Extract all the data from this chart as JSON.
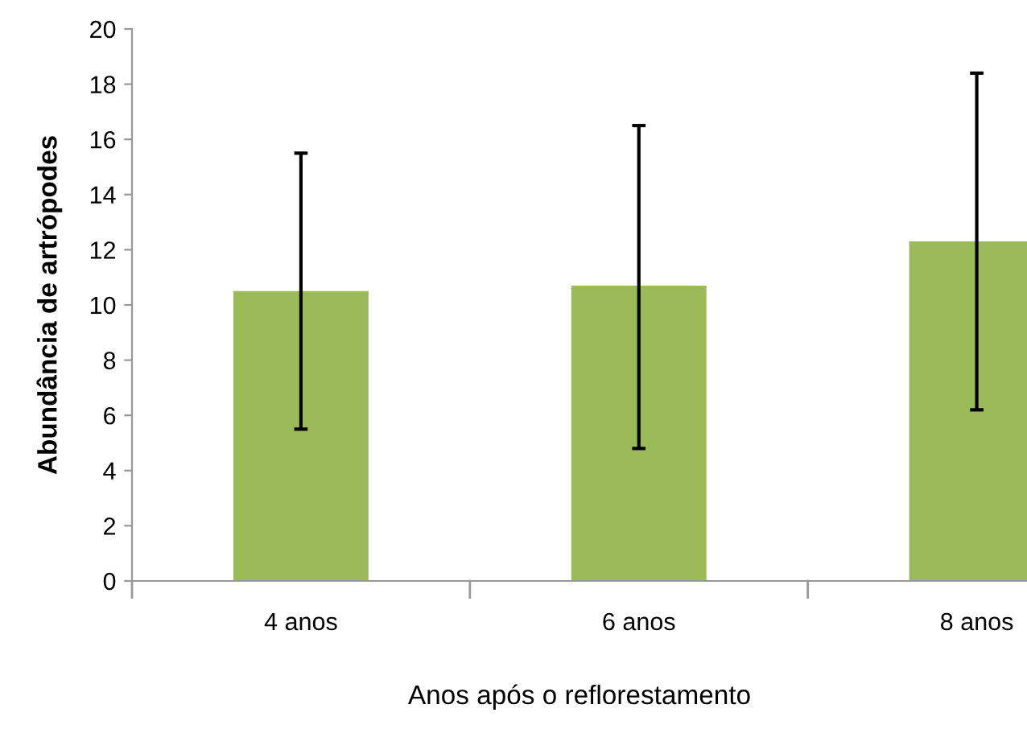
{
  "chart_data": {
    "type": "bar",
    "xlabel": "Anos após o reflorestamento",
    "ylabel": "Abundância de artrópodes",
    "categories": [
      "4 anos",
      "6 anos",
      "8 anos"
    ],
    "values": [
      10.5,
      10.7,
      12.3
    ],
    "errors": [
      [
        5.5,
        15.5
      ],
      [
        4.8,
        16.5
      ],
      [
        6.2,
        18.4
      ]
    ],
    "color": "#9bbb59",
    "ylim": [
      0,
      20
    ],
    "yticks": [
      0,
      2,
      4,
      6,
      8,
      10,
      12,
      14,
      16,
      18,
      20
    ],
    "grid": false
  }
}
